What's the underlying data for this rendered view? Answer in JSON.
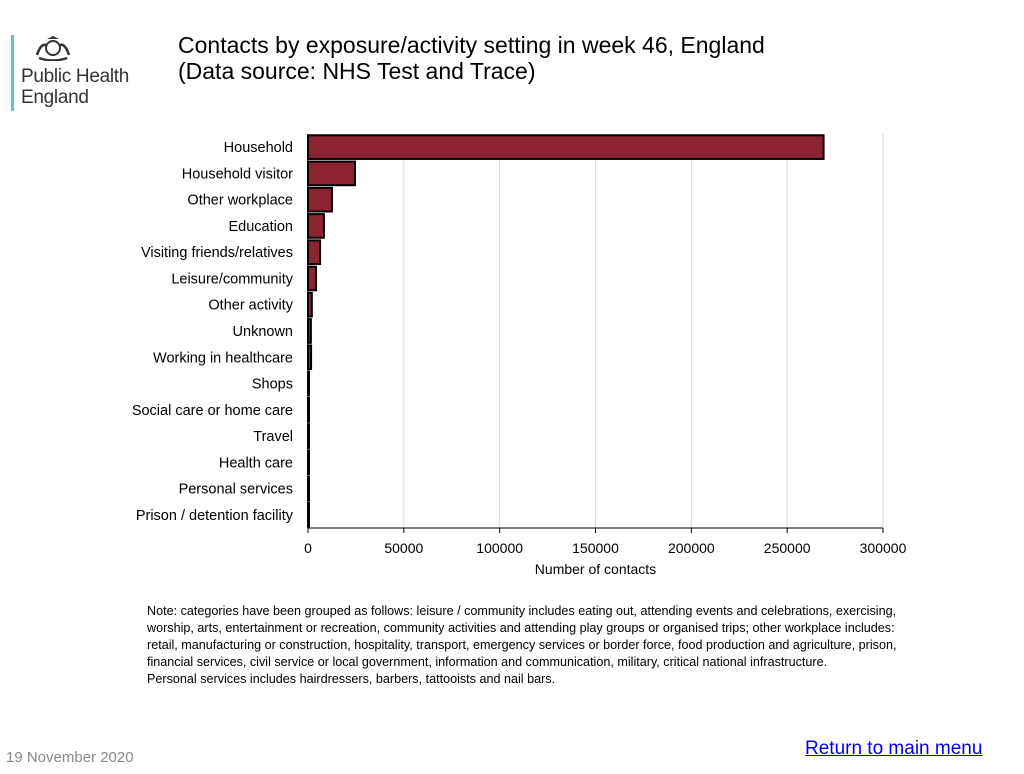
{
  "logo": {
    "line1": "Public Health",
    "line2": "England"
  },
  "title_line1": "Contacts by exposure/activity setting in week 46, England",
  "title_line2": "(Data source: NHS Test and Trace)",
  "chart_data": {
    "type": "bar",
    "orientation": "horizontal",
    "categories": [
      "Household",
      "Household visitor",
      "Other workplace",
      "Education",
      "Visiting friends/relatives",
      "Leisure/community",
      "Other activity",
      "Unknown",
      "Working in healthcare",
      "Shops",
      "Social care or home care",
      "Travel",
      "Health care",
      "Personal services",
      "Prison / detention facility"
    ],
    "values": [
      269000,
      24500,
      12500,
      8300,
      6300,
      4200,
      2000,
      1500,
      1600,
      500,
      400,
      300,
      300,
      200,
      100
    ],
    "xlabel": "Number of contacts",
    "ylabel": "",
    "xlim": [
      0,
      300000
    ],
    "xticks": [
      "0",
      "50000",
      "100000",
      "150000",
      "200000",
      "250000",
      "300000"
    ],
    "grid": true,
    "bar_color": "#8b2332"
  },
  "note": "Note: categories have been grouped as follows: leisure / community includes eating out, attending events and celebrations, exercising, worship, arts, entertainment or recreation, community activities and attending play groups or organised trips; other workplace includes: retail, manufacturing or construction, hospitality, transport, emergency services or border force, food production and agriculture, prison, financial services, civil service or local government, information and communication, military, critical national infrastructure.",
  "note2": "Personal services includes hairdressers, barbers, tattooists and nail bars.",
  "date": "19 November 2020",
  "return_link": "Return to main menu"
}
